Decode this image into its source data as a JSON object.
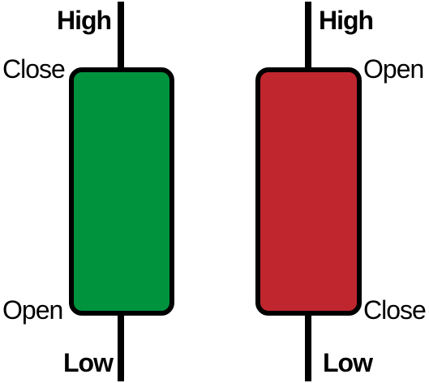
{
  "candles": [
    {
      "kind": "bullish",
      "color": "#00933e",
      "labels": {
        "high": "High",
        "top": "Close",
        "bottom": "Open",
        "low": "Low"
      }
    },
    {
      "kind": "bearish",
      "color": "#c0262e",
      "labels": {
        "high": "High",
        "top": "Open",
        "bottom": "Close",
        "low": "Low"
      }
    }
  ],
  "stroke_color": "#000000"
}
